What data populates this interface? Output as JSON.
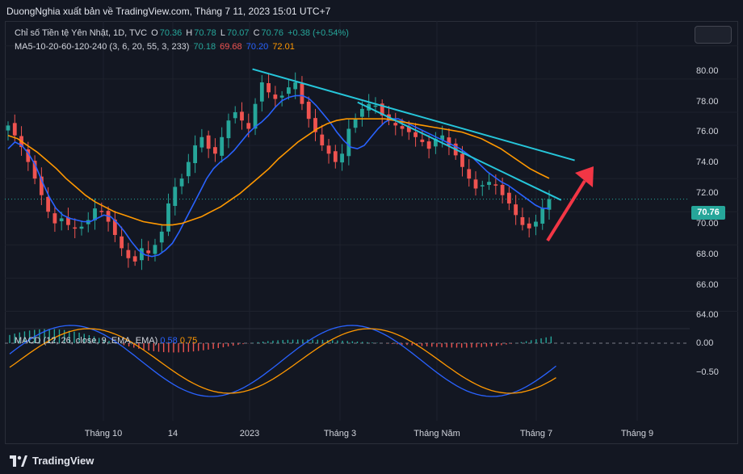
{
  "header": {
    "publisher_line": "DuongNghia xuất bản về TradingView.com, Tháng 7 11, 2023 15:01 UTC+7"
  },
  "legend": {
    "symbol": "Chỉ số Tiền tệ Yên Nhật, 1D, TVC",
    "o_label": "O",
    "o_value": "70.36",
    "h_label": "H",
    "h_value": "70.78",
    "l_label": "L",
    "l_value": "70.07",
    "c_label": "C",
    "c_value": "70.76",
    "change": "+0.38 (+0.54%)",
    "ma_label": "MA5-10-20-60-120-240 (3, 6, 20, 55, 3, 233)",
    "ma_values": [
      "70.18",
      "69.68",
      "70.20",
      "72.01"
    ],
    "ma_colors": [
      "#26a69a",
      "#ef5350",
      "#2962ff",
      "#ff9800"
    ]
  },
  "macd": {
    "label": "MACD (12, 26, close, 9, EMA, EMA)",
    "v1": "0.58",
    "v2": "0.75",
    "axis": [
      "0.00",
      "−0.50"
    ]
  },
  "price_axis": [
    "80.00",
    "78.00",
    "76.00",
    "74.00",
    "72.00",
    "70.00",
    "68.00",
    "66.00",
    "64.00"
  ],
  "last_price": "70.76",
  "time_axis": [
    "Tháng 10",
    "14",
    "2023",
    "Tháng 3",
    "Tháng Năm",
    "Tháng 7",
    "Tháng 9"
  ],
  "footer": {
    "brand": "TradingView"
  },
  "colors": {
    "up": "#26a69a",
    "down": "#ef5350",
    "trendline": "#26c6da",
    "arrow": "#f23645",
    "ma_blue": "#2962ff",
    "ma_orange": "#ff9800"
  },
  "chart_data": {
    "type": "candlestick",
    "title": "Chỉ số Tiền tệ Yên Nhật, 1D, TVC",
    "ylim": [
      63,
      81.5
    ],
    "x_ticks": [
      "Tháng 10",
      "14",
      "2023",
      "Tháng 3",
      "Tháng Năm",
      "Tháng 7",
      "Tháng 9"
    ],
    "y_ticks": [
      80,
      78,
      76,
      74,
      72,
      70,
      68,
      66,
      64
    ],
    "close_path": [
      75.2,
      74.6,
      73.9,
      73.0,
      72.0,
      71.0,
      70.0,
      69.3,
      69.6,
      69.2,
      69.0,
      69.1,
      69.5,
      70.2,
      70.0,
      69.4,
      68.6,
      67.8,
      67.2,
      67.0,
      67.8,
      67.5,
      68.0,
      68.8,
      70.5,
      71.5,
      72.0,
      73.0,
      74.0,
      74.5,
      73.8,
      73.5,
      74.5,
      75.5,
      76.0,
      75.5,
      75.0,
      76.5,
      77.8,
      77.2,
      76.8,
      77.0,
      77.5,
      77.8,
      76.5,
      75.6,
      74.8,
      74.0,
      73.5,
      73.0,
      73.5,
      75.0,
      75.6,
      76.2,
      76.5,
      76.4,
      75.8,
      75.5,
      75.2,
      75.0,
      74.8,
      74.5,
      74.2,
      73.8,
      74.4,
      74.6,
      74.0,
      73.4,
      72.7,
      72.0,
      71.4,
      71.6,
      71.8,
      71.6,
      71.0,
      70.5,
      69.8,
      69.2,
      69.0,
      69.4,
      70.2,
      70.76
    ],
    "ma_blue_path": [
      73.8,
      74.2,
      74.0,
      73.5,
      72.8,
      71.8,
      70.9,
      70.2,
      69.8,
      69.6,
      69.5,
      69.4,
      69.4,
      69.6,
      69.8,
      69.7,
      69.3,
      68.8,
      68.2,
      67.7,
      67.4,
      67.3,
      67.4,
      67.7,
      68.1,
      68.8,
      69.6,
      70.4,
      71.2,
      72.0,
      72.6,
      73.0,
      73.3,
      73.7,
      74.2,
      74.7,
      75.1,
      75.4,
      75.8,
      76.3,
      76.7,
      76.9,
      77.0,
      77.0,
      76.8,
      76.4,
      75.9,
      75.4,
      74.8,
      74.3,
      73.9,
      73.8,
      74.0,
      74.5,
      75.0,
      75.4,
      75.6,
      75.6,
      75.4,
      75.2,
      75.0,
      74.8,
      74.6,
      74.4,
      74.2,
      74.0,
      73.8,
      73.5,
      73.2,
      72.8,
      72.4,
      72.1,
      71.8,
      71.6,
      71.3,
      71.0,
      70.7,
      70.4,
      70.2,
      70.2
    ],
    "ma_orange_path": [
      74.6,
      74.4,
      74.0,
      73.6,
      73.1,
      72.6,
      72.0,
      71.5,
      71.0,
      70.6,
      70.3,
      70.0,
      69.8,
      69.6,
      69.4,
      69.3,
      69.2,
      69.2,
      69.3,
      69.5,
      69.7,
      70.0,
      70.3,
      70.7,
      71.1,
      71.6,
      72.1,
      72.6,
      73.2,
      73.7,
      74.2,
      74.6,
      75.0,
      75.3,
      75.5,
      75.6,
      75.6,
      75.6,
      75.6,
      75.6,
      75.5,
      75.4,
      75.3,
      75.2,
      75.1,
      75.0,
      74.9,
      74.8,
      74.6,
      74.4,
      74.1,
      73.8,
      73.4,
      73.0,
      72.6,
      72.3,
      72.01
    ],
    "trendlines": [
      {
        "from": [
          0.365,
          78.6
        ],
        "to": [
          0.84,
          73.1
        ]
      },
      {
        "from": [
          0.52,
          76.6
        ],
        "to": [
          0.82,
          70.7
        ]
      }
    ]
  }
}
